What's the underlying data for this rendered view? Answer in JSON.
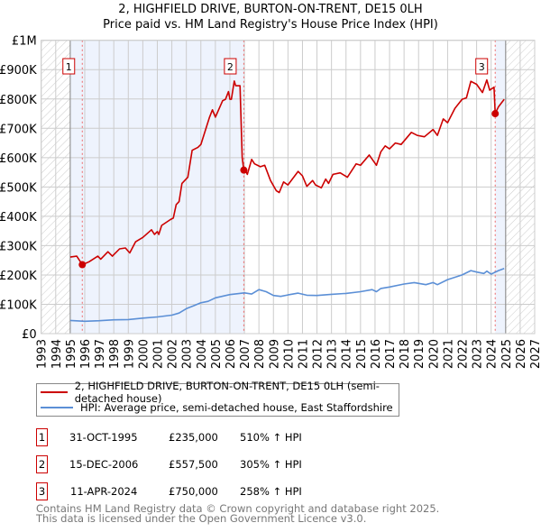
{
  "title": "2, HIGHFIELD DRIVE, BURTON-ON-TRENT, DE15 0LH",
  "subtitle": "Price paid vs. HM Land Registry's House Price Index (HPI)",
  "colors": {
    "property": "#cc0000",
    "hpi": "#5b8fd6",
    "shade": "#eef3fd"
  },
  "chart_data": {
    "type": "line",
    "title": "2, HIGHFIELD DRIVE, BURTON-ON-TRENT, DE15 0LH",
    "xlabel": "",
    "ylabel": "",
    "xlim": [
      1993,
      2027
    ],
    "ylim": [
      0,
      1000000
    ],
    "grid": true,
    "legend_placement": "below",
    "y_ticks": [
      {
        "v": 0,
        "label": "£0"
      },
      {
        "v": 100000,
        "label": "£100K"
      },
      {
        "v": 200000,
        "label": "£200K"
      },
      {
        "v": 300000,
        "label": "£300K"
      },
      {
        "v": 400000,
        "label": "£400K"
      },
      {
        "v": 500000,
        "label": "£500K"
      },
      {
        "v": 600000,
        "label": "£600K"
      },
      {
        "v": 700000,
        "label": "£700K"
      },
      {
        "v": 800000,
        "label": "£800K"
      },
      {
        "v": 900000,
        "label": "£900K"
      },
      {
        "v": 1000000,
        "label": "£1M"
      }
    ],
    "x_ticks": [
      "1993",
      "1994",
      "1995",
      "1996",
      "1997",
      "1998",
      "1999",
      "2000",
      "2001",
      "2002",
      "2003",
      "2004",
      "2005",
      "2006",
      "2007",
      "2008",
      "2009",
      "2010",
      "2011",
      "2012",
      "2013",
      "2014",
      "2015",
      "2016",
      "2017",
      "2018",
      "2019",
      "2020",
      "2021",
      "2022",
      "2023",
      "2024",
      "2025",
      "2026",
      "2027"
    ],
    "series": [
      {
        "name": "2, HIGHFIELD DRIVE, BURTON-ON-TRENT, DE15 0LH (semi-detached house)",
        "x": [
          1995.0,
          1995.45,
          1995.83,
          1996.3,
          1996.9,
          1997.1,
          1997.6,
          1997.9,
          1998.4,
          1998.8,
          1999.1,
          1999.5,
          2000.0,
          2000.6,
          2000.8,
          2001.0,
          2001.1,
          2001.3,
          2001.9,
          2002.1,
          2002.3,
          2002.5,
          2002.7,
          2003.1,
          2003.4,
          2003.8,
          2004.0,
          2004.4,
          2004.6,
          2004.8,
          2005.0,
          2005.5,
          2005.7,
          2005.9,
          2006.0,
          2006.1,
          2006.3,
          2006.4,
          2006.7,
          2006.85,
          2006.96,
          2007.1,
          2007.2,
          2007.5,
          2007.7,
          2008.1,
          2008.4,
          2008.8,
          2009.2,
          2009.4,
          2009.7,
          2010.0,
          2010.7,
          2011.0,
          2011.3,
          2011.7,
          2011.9,
          2012.3,
          2012.6,
          2012.8,
          2013.1,
          2013.6,
          2014.1,
          2014.7,
          2015.0,
          2015.6,
          2016.1,
          2016.4,
          2016.7,
          2017.0,
          2017.4,
          2017.8,
          2018.5,
          2018.9,
          2019.4,
          2020.0,
          2020.3,
          2020.7,
          2021.0,
          2021.5,
          2022.0,
          2022.3,
          2022.6,
          2023.0,
          2023.4,
          2023.7,
          2023.9,
          2024.2,
          2024.28,
          2024.5,
          2024.9
        ],
        "values": [
          261000,
          264000,
          235000,
          245000,
          264000,
          254000,
          279000,
          264000,
          289000,
          292000,
          275000,
          313000,
          328000,
          354000,
          338000,
          348000,
          338000,
          369000,
          389000,
          394000,
          440000,
          450000,
          512000,
          533000,
          625000,
          635000,
          645000,
          707000,
          738000,
          763000,
          738000,
          794000,
          799000,
          825000,
          799000,
          799000,
          861000,
          845000,
          845000,
          600000,
          557500,
          553000,
          543000,
          594000,
          579000,
          569000,
          574000,
          522000,
          487000,
          481000,
          517000,
          507000,
          553000,
          538000,
          502000,
          522000,
          507000,
          497000,
          527000,
          512000,
          543000,
          548000,
          533000,
          579000,
          574000,
          609000,
          574000,
          620000,
          640000,
          630000,
          650000,
          645000,
          686000,
          676000,
          671000,
          696000,
          676000,
          732000,
          719000,
          768000,
          799000,
          804000,
          860000,
          850000,
          822000,
          865000,
          830000,
          840000,
          750000,
          773000,
          799000
        ]
      },
      {
        "name": "HPI: Average price, semi-detached house, East Staffordshire",
        "x": [
          1995.0,
          1996.0,
          1997.0,
          1998.0,
          1999.0,
          2000.0,
          2001.0,
          2002.0,
          2002.5,
          2003.0,
          2003.5,
          2004.0,
          2004.5,
          2005.0,
          2006.0,
          2007.0,
          2007.5,
          2008.0,
          2008.5,
          2009.0,
          2009.5,
          2010.0,
          2010.7,
          2011.3,
          2012.0,
          2013.0,
          2014.0,
          2015.0,
          2015.8,
          2016.1,
          2016.4,
          2017.0,
          2018.0,
          2018.7,
          2019.5,
          2020.0,
          2020.3,
          2021.0,
          2022.0,
          2022.6,
          2023.0,
          2023.5,
          2023.7,
          2024.0,
          2024.5,
          2024.9
        ],
        "values": [
          45000,
          42000,
          44000,
          47000,
          48000,
          53000,
          57000,
          63000,
          70000,
          85000,
          95000,
          105000,
          110000,
          122000,
          133000,
          139000,
          135000,
          150000,
          143000,
          130000,
          127000,
          132000,
          138000,
          131000,
          130000,
          134000,
          137000,
          143000,
          150000,
          143000,
          154000,
          159000,
          169000,
          174000,
          167000,
          174000,
          167000,
          184000,
          200000,
          215000,
          210000,
          205000,
          213000,
          203000,
          215000,
          222000
        ]
      }
    ],
    "sales": [
      {
        "label": "1",
        "x": 1995.83,
        "value": 235000
      },
      {
        "label": "2",
        "x": 2006.96,
        "value": 557500
      },
      {
        "label": "3",
        "x": 2024.28,
        "value": 750000
      }
    ],
    "hatched_ranges": [
      [
        1993,
        1995
      ],
      [
        2025,
        2027
      ]
    ],
    "shaded_ranges": [
      [
        1995,
        2006.96
      ],
      [
        2024.28,
        2025
      ]
    ]
  },
  "legend": {
    "property": "2, HIGHFIELD DRIVE, BURTON-ON-TRENT, DE15 0LH (semi-detached house)",
    "hpi": "HPI: Average price, semi-detached house, East Staffordshire"
  },
  "transactions": [
    {
      "num": "1",
      "date": "31-OCT-1995",
      "price": "£235,000",
      "hpi": "510% ↑ HPI"
    },
    {
      "num": "2",
      "date": "15-DEC-2006",
      "price": "£557,500",
      "hpi": "305% ↑ HPI"
    },
    {
      "num": "3",
      "date": "11-APR-2024",
      "price": "£750,000",
      "hpi": "258% ↑ HPI"
    }
  ],
  "footer": {
    "line1": "Contains HM Land Registry data © Crown copyright and database right 2025.",
    "line2": "This data is licensed under the Open Government Licence v3.0."
  }
}
